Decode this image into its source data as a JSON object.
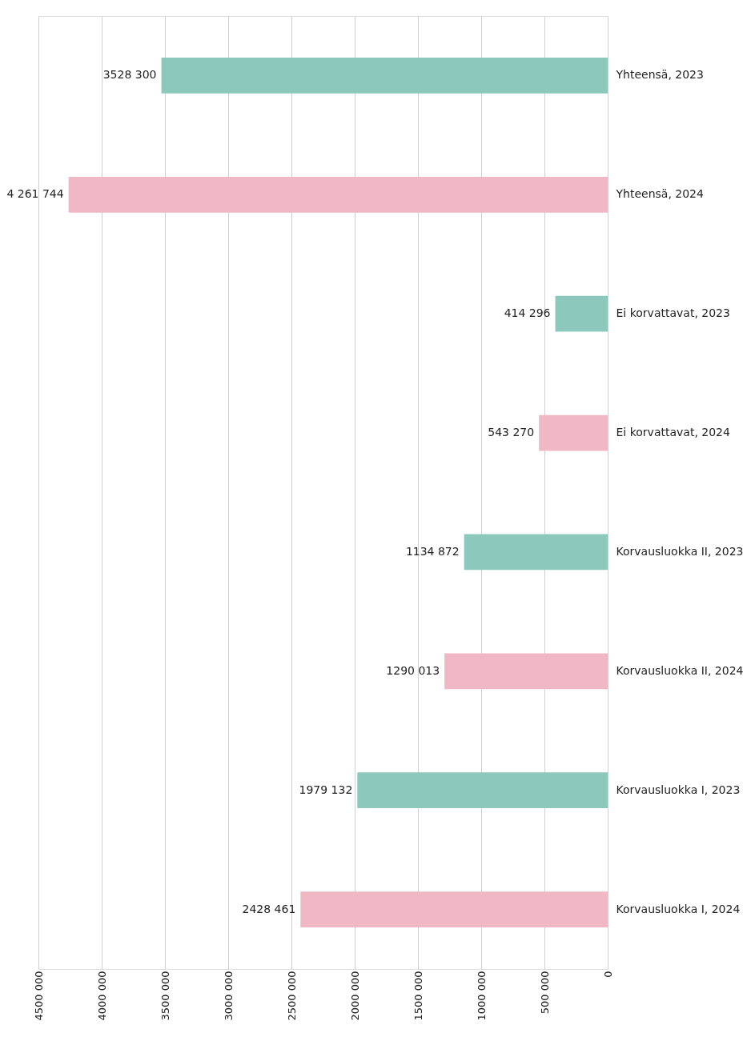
{
  "chart_data": {
    "type": "bar",
    "orientation": "horizontal",
    "categories": [
      "Yhteensä, 2023",
      "Yhteensä, 2024",
      "Ei korvattavat, 2023",
      "Ei korvattavat, 2024",
      "Korvausluokka II, 2023",
      "Korvausluokka II, 2024",
      "Korvausluokka I, 2023",
      "Korvausluokka I, 2024"
    ],
    "values": [
      3528300,
      4261744,
      414296,
      543270,
      1134872,
      1290013,
      1979132,
      2428461
    ],
    "value_labels": [
      "3528 300",
      "4 261 744",
      "414 296",
      "543 270",
      "1134 872",
      "1290 013",
      "1979 132",
      "2428 461"
    ],
    "colors": [
      "#8cc9bc",
      "#f0b8c4",
      "#8cc9bc",
      "#f0b8c4",
      "#8cc9bc",
      "#f0b8c4",
      "#8cc9bc",
      "#f0b8c4"
    ],
    "xlim": [
      4500000,
      0
    ],
    "xticks": [
      {
        "value": 4500000,
        "label": "4500 000"
      },
      {
        "value": 4000000,
        "label": "4000 000"
      },
      {
        "value": 3500000,
        "label": "3500 000"
      },
      {
        "value": 3000000,
        "label": "3000 000"
      },
      {
        "value": 2500000,
        "label": "2500 000"
      },
      {
        "value": 2000000,
        "label": "2000 000"
      },
      {
        "value": 1500000,
        "label": "1500 000"
      },
      {
        "value": 1000000,
        "label": "1000 000"
      },
      {
        "value": 500000,
        "label": "500 000"
      },
      0
    ],
    "grid": "x"
  }
}
